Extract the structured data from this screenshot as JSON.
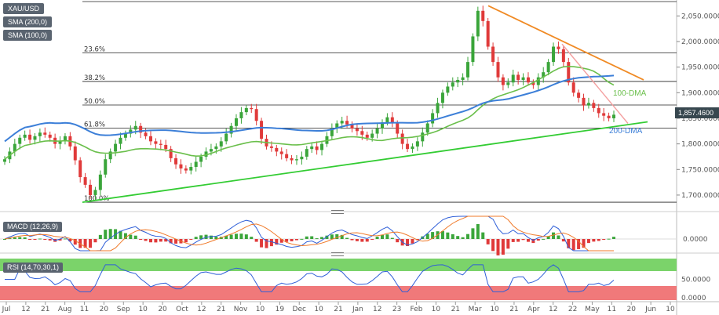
{
  "chart_labels": {
    "symbol": "XAU/USD",
    "sma200": "SMA (200,0)",
    "sma100": "SMA (100,0)",
    "macd": "MACD (12,26,9)",
    "rsi": "RSI (14,70,30,1)",
    "last_price": "1,857.4600"
  },
  "colors": {
    "up": "#3aa53a",
    "down": "#e03a3a",
    "sma100": "#6abf4b",
    "sma200": "#3c7fd8",
    "trend_up": "#33cc33",
    "trend_down": "#f08a24",
    "trend_down2": "#f4a0a0",
    "macd_line": "#2f5fd8",
    "signal_line": "#f07a2a",
    "rsi_overbought": "#7bd36a",
    "rsi_oversold": "#f0797a",
    "ma_label_100": "#6abf4b",
    "ma_label_200": "#3c7fd8",
    "price_tag": "#37474f"
  },
  "annotations": {
    "dma100": "100-DMA",
    "dma200": "200-DMA"
  },
  "fib_levels": [
    {
      "label": "23.6%",
      "price": 1978
    },
    {
      "label": "38.2%",
      "price": 1922
    },
    {
      "label": "50.0%",
      "price": 1876
    },
    {
      "label": "61.8%",
      "price": 1831
    },
    {
      "label": "100.0%",
      "price": 1686
    }
  ],
  "price_axis": {
    "ticks": [
      "2,050.0000",
      "2,000.0000",
      "1,950.0000",
      "1,900.0000",
      "1,850.0000",
      "1,800.0000",
      "1,750.0000",
      "1,700.0000"
    ],
    "values": [
      2050,
      2000,
      1950,
      1900,
      1850,
      1800,
      1750,
      1700
    ],
    "min": 1680,
    "max": 2075
  },
  "macd_axis": {
    "ticks": [
      "0.0000"
    ]
  },
  "rsi_axis": {
    "ticks": [
      "50.0000",
      "0.0000"
    ]
  },
  "time_axis": {
    "labels": [
      "Jul",
      "12",
      "21",
      "Aug",
      "11",
      "20",
      "Sep",
      "10",
      "20",
      "Oct",
      "12",
      "21",
      "Nov",
      "10",
      "19",
      "Dec",
      "10",
      "21",
      "Jan",
      "12",
      "23",
      "Feb",
      "10",
      "21",
      "Mar",
      "10",
      "21",
      "Apr",
      "12",
      "22",
      "May",
      "11",
      "20",
      "Jun",
      "10"
    ]
  },
  "chart_data": {
    "type": "line",
    "title": "XAU/USD",
    "ylim": [
      1680,
      2075
    ],
    "close_series": [
      1770,
      1785,
      1800,
      1812,
      1818,
      1808,
      1815,
      1822,
      1818,
      1812,
      1800,
      1805,
      1815,
      1795,
      1768,
      1735,
      1720,
      1700,
      1710,
      1740,
      1770,
      1785,
      1800,
      1812,
      1820,
      1828,
      1835,
      1822,
      1815,
      1805,
      1800,
      1798,
      1790,
      1772,
      1760,
      1752,
      1748,
      1755,
      1765,
      1775,
      1785,
      1790,
      1795,
      1805,
      1820,
      1835,
      1850,
      1862,
      1870,
      1868,
      1845,
      1810,
      1795,
      1792,
      1785,
      1780,
      1772,
      1768,
      1770,
      1775,
      1790,
      1795,
      1788,
      1800,
      1815,
      1830,
      1840,
      1845,
      1838,
      1830,
      1825,
      1818,
      1812,
      1820,
      1830,
      1842,
      1852,
      1840,
      1820,
      1800,
      1790,
      1795,
      1805,
      1822,
      1840,
      1860,
      1880,
      1900,
      1912,
      1920,
      1925,
      1930,
      1960,
      2010,
      2060,
      2040,
      1990,
      1960,
      1930,
      1915,
      1920,
      1935,
      1925,
      1930,
      1920,
      1915,
      1930,
      1940,
      1960,
      1990,
      1985,
      1960,
      1920,
      1900,
      1890,
      1875,
      1880,
      1870,
      1860,
      1855,
      1850,
      1857
    ]
  }
}
